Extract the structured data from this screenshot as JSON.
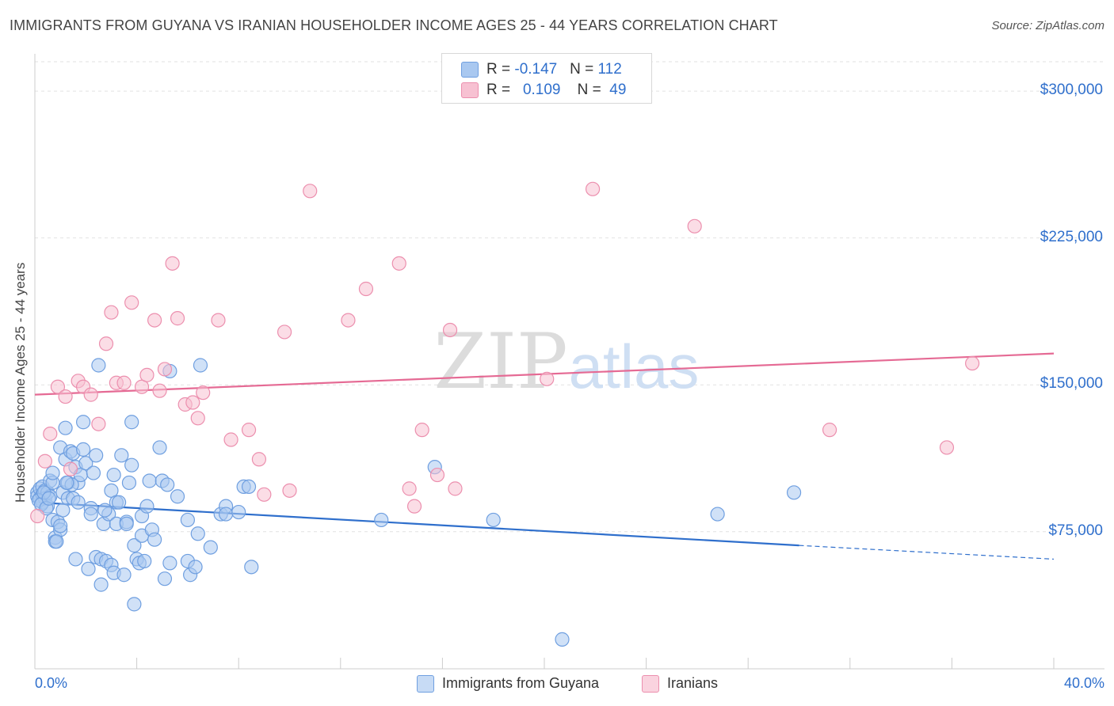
{
  "header": {
    "title": "IMMIGRANTS FROM GUYANA VS IRANIAN HOUSEHOLDER INCOME AGES 25 - 44 YEARS CORRELATION CHART",
    "source": "Source: ZipAtlas.com"
  },
  "watermark": {
    "text_zip": "ZIP",
    "text_atlas": "atlas"
  },
  "legend": {
    "r_label": "R = ",
    "n_label": "N = ",
    "rows": [
      {
        "r": "-0.147",
        "n": "112",
        "color": "#a9c8f0",
        "border": "#6f9fe0"
      },
      {
        "r": "0.109",
        "n": "49",
        "color": "#f7c1d2",
        "border": "#ec8fae"
      }
    ]
  },
  "chart_data": {
    "type": "scatter",
    "title": "IMMIGRANTS FROM GUYANA VS IRANIAN HOUSEHOLDER INCOME AGES 25 - 44 YEARS CORRELATION CHART",
    "xlabel": "",
    "ylabel": "Householder Income Ages 25 - 44 years",
    "xlim": [
      0,
      40
    ],
    "ylim": [
      5000,
      315000
    ],
    "x_tick_labels": [
      "0.0%",
      "40.0%"
    ],
    "y_ticks": [
      75000,
      150000,
      225000,
      300000
    ],
    "y_tick_labels": [
      "$75,000",
      "$150,000",
      "$225,000",
      "$300,000"
    ],
    "grid": true,
    "legend_position": "top-center",
    "series": [
      {
        "name": "Immigrants from Guyana",
        "color": "#6f9fe0",
        "fill": "#a9c8f0",
        "trend": {
          "x0": 0,
          "y0": 90000,
          "x1": 30,
          "y1": 68000,
          "dash_to_x": 40,
          "dash_to_y": 61000,
          "color": "#2f6fcc"
        },
        "points": [
          [
            0.1,
            95000
          ],
          [
            0.1,
            93000
          ],
          [
            0.2,
            97000
          ],
          [
            0.2,
            92000
          ],
          [
            0.3,
            98000
          ],
          [
            0.3,
            94000
          ],
          [
            0.3,
            90000
          ],
          [
            0.4,
            96000
          ],
          [
            0.4,
            92000
          ],
          [
            0.5,
            88000
          ],
          [
            0.5,
            95000
          ],
          [
            0.6,
            101000
          ],
          [
            0.6,
            93000
          ],
          [
            0.7,
            100000
          ],
          [
            0.7,
            105000
          ],
          [
            0.7,
            81000
          ],
          [
            0.8,
            72000
          ],
          [
            0.8,
            70000
          ],
          [
            0.9,
            80000
          ],
          [
            1.0,
            76000
          ],
          [
            1.0,
            118000
          ],
          [
            1.0,
            78000
          ],
          [
            1.1,
            95000
          ],
          [
            1.1,
            86000
          ],
          [
            1.2,
            128000
          ],
          [
            1.2,
            112000
          ],
          [
            1.3,
            100000
          ],
          [
            1.3,
            92000
          ],
          [
            1.4,
            116000
          ],
          [
            1.5,
            115000
          ],
          [
            1.5,
            92000
          ],
          [
            1.6,
            61000
          ],
          [
            1.6,
            108000
          ],
          [
            1.7,
            100000
          ],
          [
            1.7,
            90000
          ],
          [
            1.8,
            104000
          ],
          [
            1.9,
            131000
          ],
          [
            1.9,
            117000
          ],
          [
            2.0,
            110000
          ],
          [
            2.1,
            56000
          ],
          [
            2.2,
            87000
          ],
          [
            2.2,
            84000
          ],
          [
            2.3,
            105000
          ],
          [
            2.4,
            114000
          ],
          [
            2.4,
            62000
          ],
          [
            2.5,
            160000
          ],
          [
            2.6,
            61000
          ],
          [
            2.6,
            48000
          ],
          [
            2.7,
            79000
          ],
          [
            2.8,
            60000
          ],
          [
            2.9,
            84000
          ],
          [
            3.0,
            58000
          ],
          [
            3.0,
            96000
          ],
          [
            3.1,
            104000
          ],
          [
            3.1,
            54000
          ],
          [
            3.2,
            79000
          ],
          [
            3.2,
            90000
          ],
          [
            3.3,
            90000
          ],
          [
            3.4,
            114000
          ],
          [
            3.5,
            53000
          ],
          [
            3.6,
            80000
          ],
          [
            3.6,
            79000
          ],
          [
            3.7,
            100000
          ],
          [
            3.8,
            109000
          ],
          [
            3.8,
            131000
          ],
          [
            3.9,
            68000
          ],
          [
            3.9,
            38000
          ],
          [
            4.0,
            61000
          ],
          [
            4.1,
            59000
          ],
          [
            4.2,
            73000
          ],
          [
            4.2,
            83000
          ],
          [
            4.3,
            60000
          ],
          [
            4.4,
            88000
          ],
          [
            4.5,
            101000
          ],
          [
            4.6,
            76000
          ],
          [
            4.7,
            71000
          ],
          [
            4.9,
            118000
          ],
          [
            5.0,
            101000
          ],
          [
            5.1,
            51000
          ],
          [
            5.2,
            99000
          ],
          [
            5.3,
            59000
          ],
          [
            5.3,
            157000
          ],
          [
            5.6,
            93000
          ],
          [
            6.0,
            81000
          ],
          [
            6.0,
            60000
          ],
          [
            6.1,
            53000
          ],
          [
            6.3,
            57000
          ],
          [
            6.4,
            74000
          ],
          [
            6.5,
            160000
          ],
          [
            6.9,
            67000
          ],
          [
            7.3,
            84000
          ],
          [
            7.5,
            88000
          ],
          [
            7.5,
            84000
          ],
          [
            8.0,
            85000
          ],
          [
            8.2,
            98000
          ],
          [
            8.4,
            98000
          ],
          [
            8.5,
            57000
          ],
          [
            13.6,
            81000
          ],
          [
            15.7,
            108000
          ],
          [
            18.0,
            81000
          ],
          [
            20.7,
            20000
          ],
          [
            26.8,
            84000
          ],
          [
            29.8,
            95000
          ],
          [
            0.15,
            91000
          ],
          [
            0.25,
            89000
          ],
          [
            0.35,
            95000
          ],
          [
            0.45,
            87000
          ],
          [
            0.55,
            92000
          ],
          [
            1.45,
            99000
          ],
          [
            2.75,
            86000
          ],
          [
            0.85,
            70000
          ],
          [
            1.25,
            100000
          ]
        ]
      },
      {
        "name": "Iranians",
        "color": "#ec8fae",
        "fill": "#f7c1d2",
        "trend": {
          "x0": 0,
          "y0": 145000,
          "x1": 40,
          "y1": 166000,
          "color": "#e56a94"
        },
        "points": [
          [
            0.1,
            83000
          ],
          [
            0.4,
            111000
          ],
          [
            0.6,
            125000
          ],
          [
            0.9,
            149000
          ],
          [
            1.2,
            144000
          ],
          [
            1.4,
            107000
          ],
          [
            1.7,
            152000
          ],
          [
            1.9,
            149000
          ],
          [
            2.2,
            145000
          ],
          [
            2.5,
            130000
          ],
          [
            2.8,
            171000
          ],
          [
            3.0,
            187000
          ],
          [
            3.2,
            151000
          ],
          [
            3.5,
            151000
          ],
          [
            3.8,
            192000
          ],
          [
            4.2,
            149000
          ],
          [
            4.4,
            155000
          ],
          [
            4.7,
            183000
          ],
          [
            4.9,
            147000
          ],
          [
            5.1,
            158000
          ],
          [
            5.4,
            212000
          ],
          [
            5.6,
            184000
          ],
          [
            5.9,
            140000
          ],
          [
            6.2,
            141000
          ],
          [
            6.4,
            133000
          ],
          [
            6.6,
            146000
          ],
          [
            7.2,
            183000
          ],
          [
            7.7,
            122000
          ],
          [
            8.4,
            127000
          ],
          [
            8.8,
            112000
          ],
          [
            9.0,
            94000
          ],
          [
            9.8,
            177000
          ],
          [
            10.0,
            96000
          ],
          [
            10.8,
            249000
          ],
          [
            12.3,
            183000
          ],
          [
            13.0,
            199000
          ],
          [
            14.3,
            212000
          ],
          [
            14.7,
            97000
          ],
          [
            14.9,
            88000
          ],
          [
            15.2,
            127000
          ],
          [
            15.8,
            104000
          ],
          [
            16.3,
            178000
          ],
          [
            16.5,
            97000
          ],
          [
            20.1,
            153000
          ],
          [
            21.9,
            250000
          ],
          [
            25.9,
            231000
          ],
          [
            31.2,
            127000
          ],
          [
            35.8,
            118000
          ],
          [
            36.8,
            161000
          ]
        ]
      }
    ]
  },
  "bottom_legend": {
    "items": [
      {
        "label": "Immigrants from Guyana"
      },
      {
        "label": "Iranians"
      }
    ]
  }
}
